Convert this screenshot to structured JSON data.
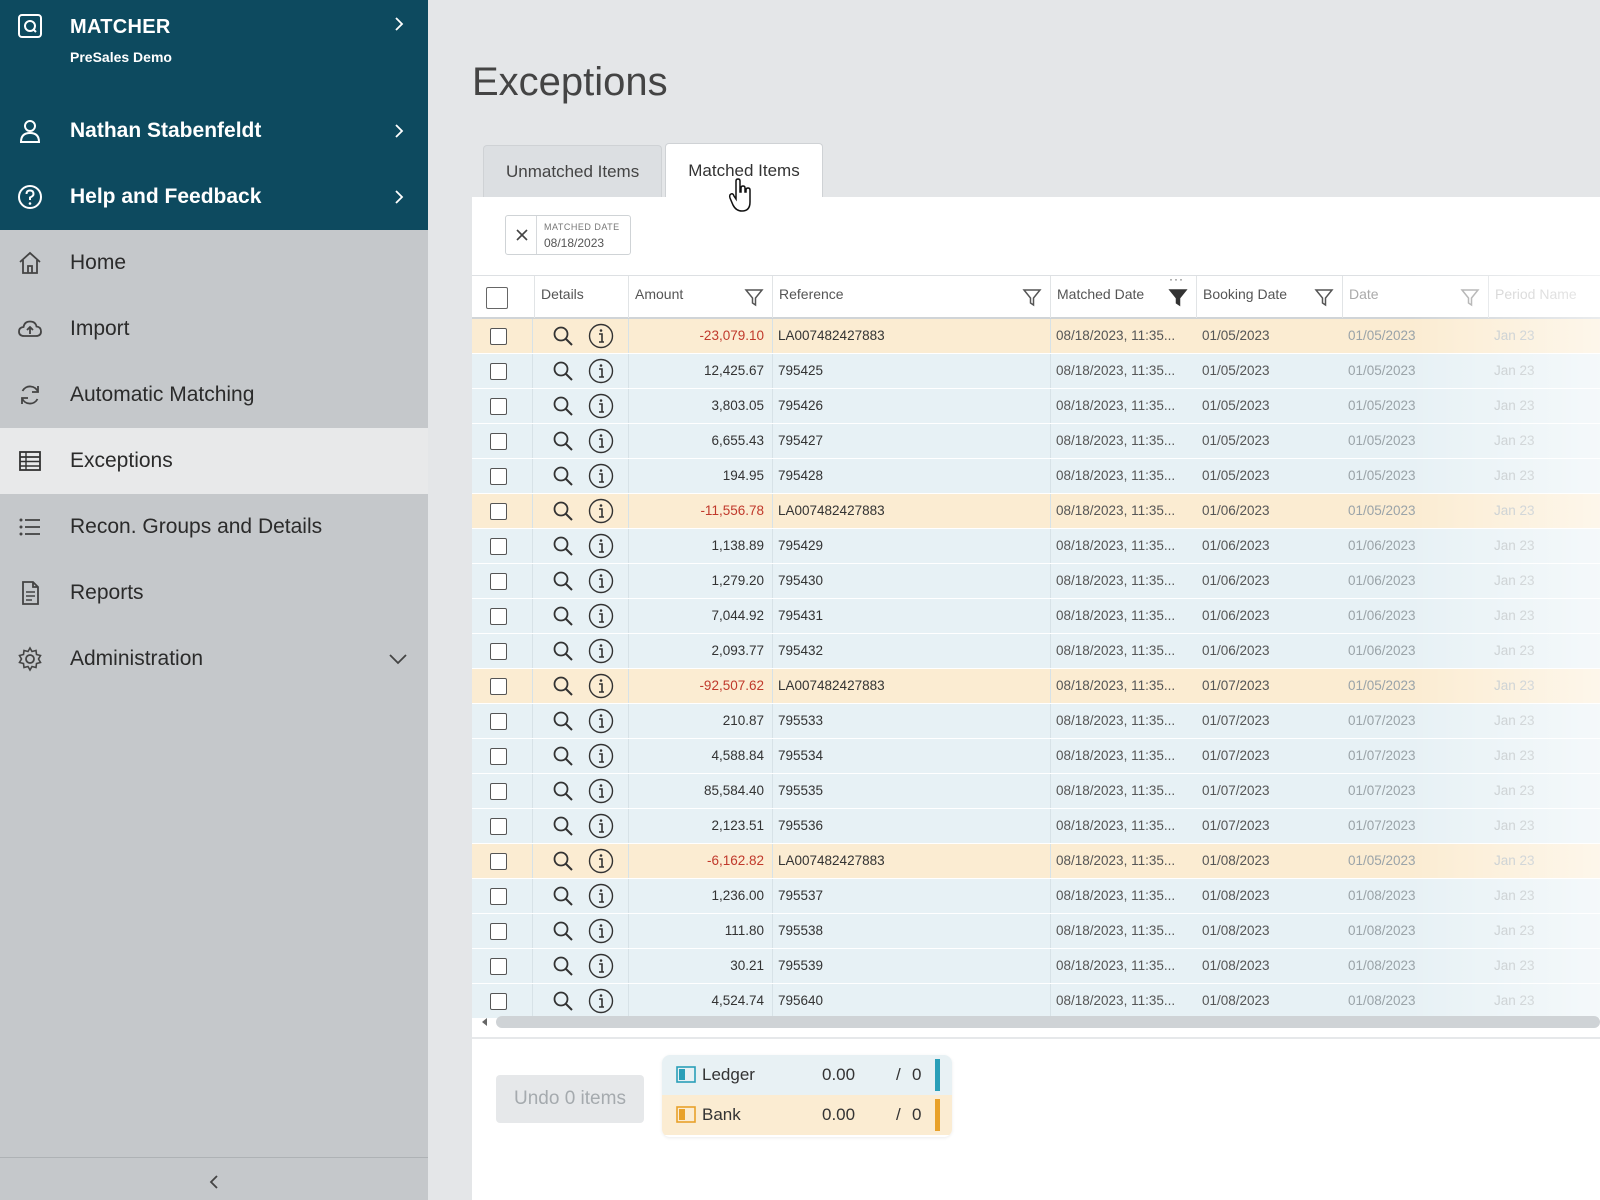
{
  "sidebar": {
    "app_title": "MATCHER",
    "app_subtitle": "PreSales Demo",
    "user_name": "Nathan Stabenfeldt",
    "help_label": "Help and Feedback",
    "items": [
      {
        "label": "Home",
        "icon": "home-icon"
      },
      {
        "label": "Import",
        "icon": "cloud-upload-icon"
      },
      {
        "label": "Automatic Matching",
        "icon": "refresh-icon"
      },
      {
        "label": "Exceptions",
        "icon": "table-icon",
        "active": true
      },
      {
        "label": "Recon. Groups and Details",
        "icon": "list-icon"
      },
      {
        "label": "Reports",
        "icon": "document-icon"
      },
      {
        "label": "Administration",
        "icon": "gear-icon",
        "expandable": true
      }
    ]
  },
  "main": {
    "title": "Exceptions",
    "tabs": [
      "Unmatched Items",
      "Matched Items"
    ],
    "active_tab": "Matched Items",
    "filter_chip": {
      "label": "MATCHED DATE",
      "value": "08/18/2023"
    }
  },
  "table": {
    "columns": {
      "details": "Details",
      "amount": "Amount",
      "reference": "Reference",
      "matched_date": "Matched Date",
      "booking_date": "Booking Date",
      "date": "Date",
      "period_name": "Period Name"
    },
    "rows": [
      {
        "amount": "-23,079.10",
        "reference": "LA007482427883",
        "matched": "08/18/2023, 11:35...",
        "booking": "01/05/2023",
        "date": "01/05/2023",
        "period": "Jan 23",
        "type": "bank"
      },
      {
        "amount": "12,425.67",
        "reference": "795425",
        "matched": "08/18/2023, 11:35...",
        "booking": "01/05/2023",
        "date": "01/05/2023",
        "period": "Jan 23",
        "type": "ledger"
      },
      {
        "amount": "3,803.05",
        "reference": "795426",
        "matched": "08/18/2023, 11:35...",
        "booking": "01/05/2023",
        "date": "01/05/2023",
        "period": "Jan 23",
        "type": "ledger"
      },
      {
        "amount": "6,655.43",
        "reference": "795427",
        "matched": "08/18/2023, 11:35...",
        "booking": "01/05/2023",
        "date": "01/05/2023",
        "period": "Jan 23",
        "type": "ledger"
      },
      {
        "amount": "194.95",
        "reference": "795428",
        "matched": "08/18/2023, 11:35...",
        "booking": "01/05/2023",
        "date": "01/05/2023",
        "period": "Jan 23",
        "type": "ledger"
      },
      {
        "amount": "-11,556.78",
        "reference": "LA007482427883",
        "matched": "08/18/2023, 11:35...",
        "booking": "01/06/2023",
        "date": "01/05/2023",
        "period": "Jan 23",
        "type": "bank"
      },
      {
        "amount": "1,138.89",
        "reference": "795429",
        "matched": "08/18/2023, 11:35...",
        "booking": "01/06/2023",
        "date": "01/06/2023",
        "period": "Jan 23",
        "type": "ledger"
      },
      {
        "amount": "1,279.20",
        "reference": "795430",
        "matched": "08/18/2023, 11:35...",
        "booking": "01/06/2023",
        "date": "01/06/2023",
        "period": "Jan 23",
        "type": "ledger"
      },
      {
        "amount": "7,044.92",
        "reference": "795431",
        "matched": "08/18/2023, 11:35...",
        "booking": "01/06/2023",
        "date": "01/06/2023",
        "period": "Jan 23",
        "type": "ledger"
      },
      {
        "amount": "2,093.77",
        "reference": "795432",
        "matched": "08/18/2023, 11:35...",
        "booking": "01/06/2023",
        "date": "01/06/2023",
        "period": "Jan 23",
        "type": "ledger"
      },
      {
        "amount": "-92,507.62",
        "reference": "LA007482427883",
        "matched": "08/18/2023, 11:35...",
        "booking": "01/07/2023",
        "date": "01/05/2023",
        "period": "Jan 23",
        "type": "bank"
      },
      {
        "amount": "210.87",
        "reference": "795533",
        "matched": "08/18/2023, 11:35...",
        "booking": "01/07/2023",
        "date": "01/07/2023",
        "period": "Jan 23",
        "type": "ledger"
      },
      {
        "amount": "4,588.84",
        "reference": "795534",
        "matched": "08/18/2023, 11:35...",
        "booking": "01/07/2023",
        "date": "01/07/2023",
        "period": "Jan 23",
        "type": "ledger"
      },
      {
        "amount": "85,584.40",
        "reference": "795535",
        "matched": "08/18/2023, 11:35...",
        "booking": "01/07/2023",
        "date": "01/07/2023",
        "period": "Jan 23",
        "type": "ledger"
      },
      {
        "amount": "2,123.51",
        "reference": "795536",
        "matched": "08/18/2023, 11:35...",
        "booking": "01/07/2023",
        "date": "01/07/2023",
        "period": "Jan 23",
        "type": "ledger"
      },
      {
        "amount": "-6,162.82",
        "reference": "LA007482427883",
        "matched": "08/18/2023, 11:35...",
        "booking": "01/08/2023",
        "date": "01/05/2023",
        "period": "Jan 23",
        "type": "bank"
      },
      {
        "amount": "1,236.00",
        "reference": "795537",
        "matched": "08/18/2023, 11:35...",
        "booking": "01/08/2023",
        "date": "01/08/2023",
        "period": "Jan 23",
        "type": "ledger"
      },
      {
        "amount": "111.80",
        "reference": "795538",
        "matched": "08/18/2023, 11:35...",
        "booking": "01/08/2023",
        "date": "01/08/2023",
        "period": "Jan 23",
        "type": "ledger"
      },
      {
        "amount": "30.21",
        "reference": "795539",
        "matched": "08/18/2023, 11:35...",
        "booking": "01/08/2023",
        "date": "01/08/2023",
        "period": "Jan 23",
        "type": "ledger"
      },
      {
        "amount": "4,524.74",
        "reference": "795640",
        "matched": "08/18/2023, 11:35...",
        "booking": "01/08/2023",
        "date": "01/08/2023",
        "period": "Jan 23",
        "type": "ledger"
      }
    ]
  },
  "footer": {
    "undo_label": "Undo 0 items",
    "ledger": {
      "label": "Ledger",
      "value": "0.00",
      "slash": "/",
      "count": "0",
      "color": "#2a9fb8"
    },
    "bank": {
      "label": "Bank",
      "value": "0.00",
      "slash": "/",
      "count": "0",
      "color": "#e8a12a"
    }
  },
  "colors": {
    "sidebar_top": "#0d4a5f",
    "sidebar_bg": "#c5c8cb",
    "row_ledger": "#e7f1f5",
    "row_bank": "#fbecd2",
    "negative": "#c0392b"
  }
}
